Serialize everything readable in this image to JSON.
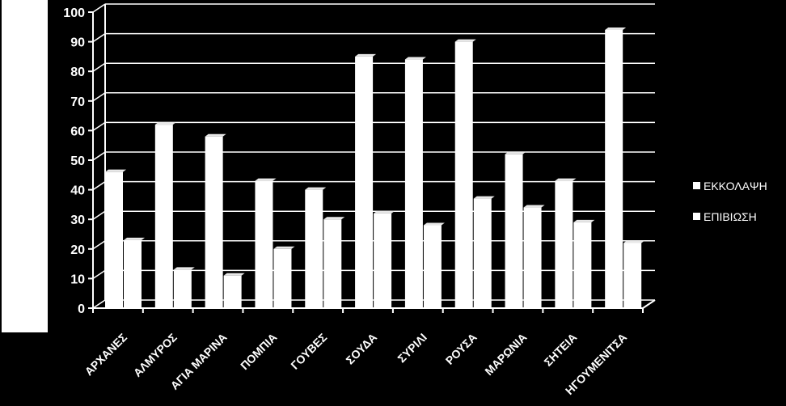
{
  "chart_data": {
    "type": "bar",
    "categories": [
      "ΑΡΧΑΝΕΣ",
      "ΑΛΜΥΡΟΣ",
      "ΑΓΙΑ ΜΑΡΙΝΑ",
      "ΠΟΜΠΙΑ",
      "ΓΟΥΒΕΣ",
      "ΣΟΥΔΑ",
      "ΣΥΡΙΛΙ",
      "ΡΟΥΣΑ",
      "ΜΑΡΩΝΙΑ",
      "ΣΗΤΕΙΑ",
      "ΗΓΟΥΜΕΝΙΤΣΑ"
    ],
    "series": [
      {
        "name": "ΕΚΚΟΛΑΨΗ",
        "values": [
          46,
          62,
          58,
          43,
          40,
          85,
          84,
          90,
          52,
          43,
          94
        ]
      },
      {
        "name": "ΕΠΙΒΙΩΣΗ",
        "values": [
          23,
          13,
          11,
          20,
          30,
          32,
          28,
          37,
          34,
          29,
          22
        ]
      }
    ],
    "ylim": [
      0,
      100
    ],
    "yticks": [
      "0",
      "10",
      "20",
      "30",
      "40",
      "50",
      "60",
      "70",
      "80",
      "90",
      "100"
    ],
    "title": "",
    "xlabel": "",
    "ylabel": "",
    "legend_position": "right",
    "grid": true,
    "colors": {
      "background": "#000000",
      "bars": "#ffffff",
      "axes": "#ffffff"
    }
  }
}
